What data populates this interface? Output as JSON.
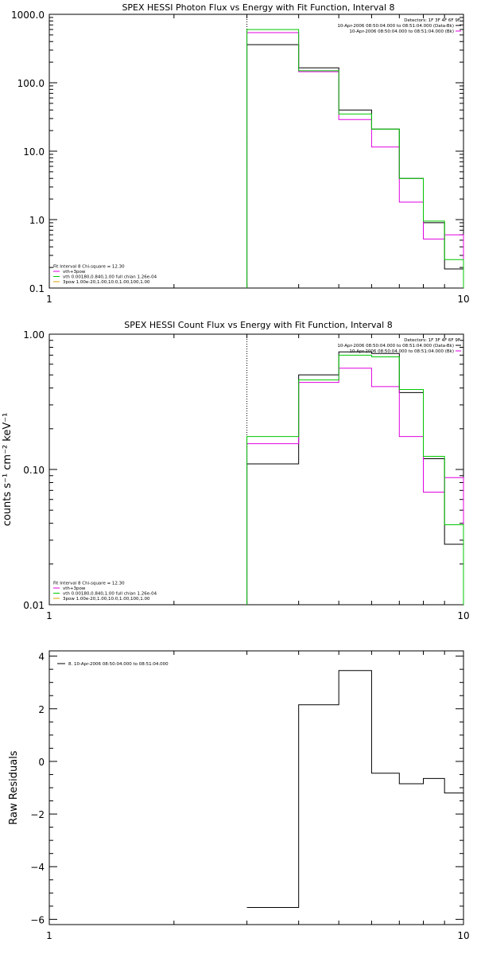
{
  "chart_data": [
    {
      "type": "line",
      "title": "SPEX HESSI Photon Flux vs Energy with Fit Function, Interval 8",
      "xlabel": "",
      "ylabel": "",
      "x_scale": "log",
      "y_scale": "log",
      "xlim": [
        1,
        10
      ],
      "ylim": [
        0.1,
        1000
      ],
      "x_tick_labels": [
        "1",
        "10"
      ],
      "y_ticks": [
        0.1,
        1,
        10,
        100,
        1000
      ],
      "y_tick_labels": [
        "0.1",
        "1.0",
        "10.0",
        "100.0",
        "1000.0"
      ],
      "vline": 3,
      "bin_edges": [
        3,
        4,
        5,
        6,
        7,
        8,
        9,
        10
      ],
      "series": [
        {
          "color": "#000000",
          "values": [
            360,
            165,
            40,
            21,
            4.0,
            0.9,
            0.19
          ]
        },
        {
          "color": "#e000e0",
          "values": [
            540,
            145,
            29,
            11.5,
            1.8,
            0.52,
            0.6
          ]
        },
        {
          "color": "#00c800",
          "values": [
            600,
            150,
            35,
            21,
            4.0,
            0.95,
            0.26
          ]
        }
      ],
      "legend_top": [
        {
          "text": "Detectors: 1F 3F 4F 6F 9F",
          "color": ""
        },
        {
          "text": "10-Apr-2006 08:50:04.000 to 08:51:04.000 (Data-Bk)",
          "color": "#000000"
        },
        {
          "text": "10-Apr-2006 08:50:04.000 to 08:51:04.000 (Bk)",
          "color": "#e000e0"
        }
      ],
      "legend_bottom": [
        {
          "text": "Fit Interval 8   Chi-square = 12.30",
          "color": ""
        },
        {
          "text": "vth+3pow",
          "color": "#e000e0"
        },
        {
          "text": "vth 0.00180,0.840,1.00   full chian 1.26e-04",
          "color": "#00c800"
        },
        {
          "text": "3pow 1.00e-20,1.00,10.0,1.00,100,1.00",
          "color": "#d8a000"
        }
      ]
    },
    {
      "type": "line",
      "title": "SPEX HESSI Count Flux vs Energy with Fit Function, Interval 8",
      "xlabel": "",
      "ylabel": "counts s⁻¹ cm⁻² keV⁻¹",
      "x_scale": "log",
      "y_scale": "log",
      "xlim": [
        1,
        10
      ],
      "ylim": [
        0.01,
        1
      ],
      "x_tick_labels": [
        "1",
        "10"
      ],
      "y_ticks": [
        0.01,
        0.1,
        1
      ],
      "y_tick_labels": [
        "0.01",
        "0.10",
        "1.00"
      ],
      "vline": 3,
      "bin_edges": [
        3,
        4,
        5,
        6,
        7,
        8,
        9,
        10
      ],
      "series": [
        {
          "color": "#000000",
          "values": [
            0.11,
            0.5,
            0.74,
            0.72,
            0.37,
            0.12,
            0.028
          ]
        },
        {
          "color": "#e000e0",
          "values": [
            0.155,
            0.44,
            0.56,
            0.41,
            0.175,
            0.068,
            0.087
          ]
        },
        {
          "color": "#00c800",
          "values": [
            0.175,
            0.46,
            0.7,
            0.68,
            0.39,
            0.125,
            0.039
          ]
        }
      ],
      "legend_top": [
        {
          "text": "Detectors: 1F 3F 4F 6F 9F",
          "color": ""
        },
        {
          "text": "10-Apr-2006 08:50:04.000 to 08:51:04.000 (Data-Bk)",
          "color": "#000000"
        },
        {
          "text": "10-Apr-2006 08:50:04.000 to 08:51:04.000 (Bk)",
          "color": "#e000e0"
        }
      ],
      "legend_bottom": [
        {
          "text": "Fit Interval 8   Chi-square = 12.30",
          "color": ""
        },
        {
          "text": "vth+3pow",
          "color": "#e000e0"
        },
        {
          "text": "vth 0.00180,0.840,1.00   full chian 1.26e-04",
          "color": "#00c800"
        },
        {
          "text": "3pow 1.00e-20,1.00,10.0,1.00,100,1.00",
          "color": "#d8a000"
        }
      ]
    },
    {
      "type": "line",
      "title": "",
      "xlabel": "",
      "ylabel": "Raw Residuals",
      "x_scale": "log",
      "y_scale": "linear",
      "xlim": [
        1,
        10
      ],
      "ylim": [
        -6.2,
        4.2
      ],
      "x_tick_labels": [
        "1",
        "10"
      ],
      "y_ticks": [
        -6,
        -4,
        -2,
        0,
        2,
        4
      ],
      "y_tick_labels": [
        "−6",
        "−4",
        "−2",
        "0",
        "2",
        "4"
      ],
      "bin_edges": [
        3,
        4,
        5,
        6,
        7,
        8,
        9,
        10
      ],
      "series": [
        {
          "color": "#000000",
          "values": [
            -5.55,
            2.15,
            3.45,
            -0.45,
            -0.85,
            -0.65,
            -1.2
          ]
        }
      ],
      "legend_top": [
        {
          "text": "8. 10-Apr-2006 08:50:04.000 to 08:51:04.000",
          "color": "#000000"
        }
      ]
    }
  ]
}
